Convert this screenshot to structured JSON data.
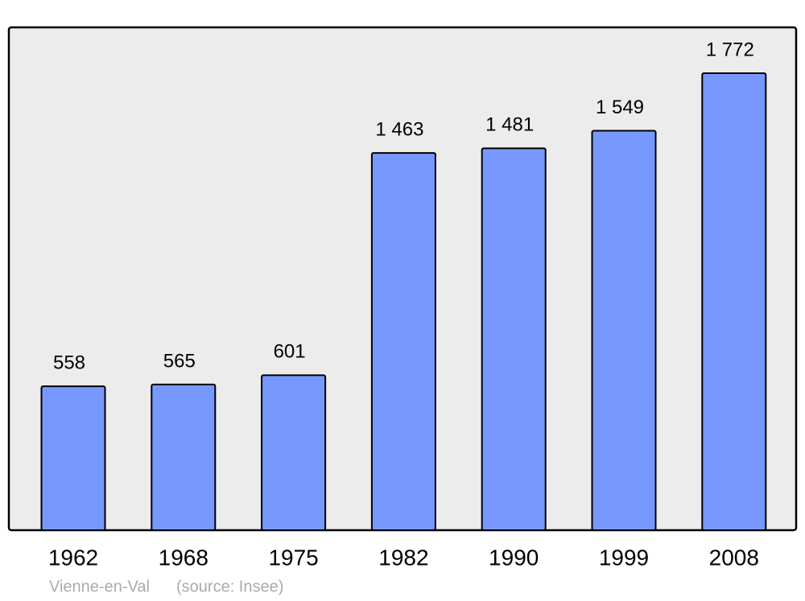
{
  "chart_data": {
    "type": "bar",
    "categories": [
      "1962",
      "1968",
      "1975",
      "1982",
      "1990",
      "1999",
      "2008"
    ],
    "values": [
      558,
      565,
      601,
      1463,
      1481,
      1549,
      1772
    ],
    "value_labels": [
      "558",
      "565",
      "601",
      "1 463",
      "1 481",
      "1 549",
      "1 772"
    ],
    "color": "#7799ff",
    "ylim": [
      0,
      1950
    ],
    "caption": "Vienne-en-Val",
    "source": "(source: Insee)"
  }
}
